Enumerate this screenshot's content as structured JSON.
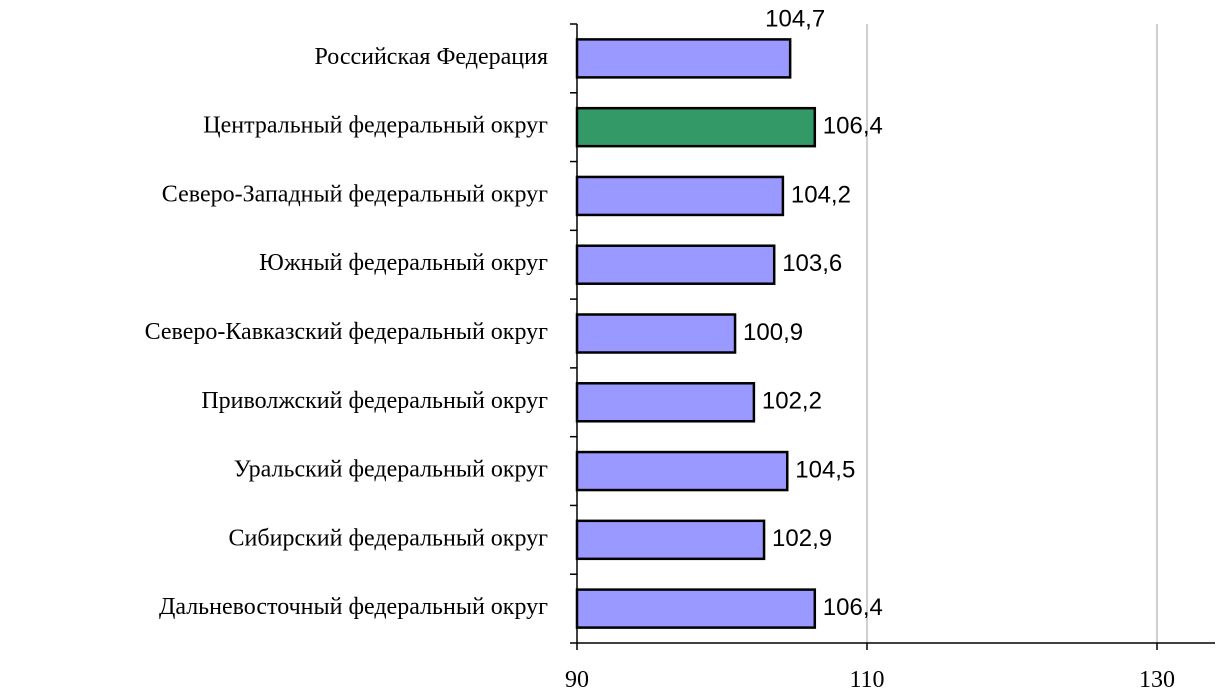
{
  "chart_data": {
    "type": "barh",
    "categories": [
      "Российская Федерация",
      "Центральный федеральный округ",
      "Северо-Западный федеральный округ",
      "Южный федеральный округ",
      "Северо-Кавказский федеральный округ",
      "Приволжский федеральный округ",
      "Уральский федеральный округ",
      "Сибирский федеральный округ",
      "Дальневосточный федеральный округ"
    ],
    "values": [
      104.7,
      106.4,
      104.2,
      103.6,
      100.9,
      102.2,
      104.5,
      102.9,
      106.4
    ],
    "value_labels": [
      "104,7",
      "106,4",
      "104,2",
      "103,6",
      "100,9",
      "102,2",
      "104,5",
      "102,9",
      "106,4"
    ],
    "colors": [
      "#9999ff",
      "#339966",
      "#9999ff",
      "#9999ff",
      "#9999ff",
      "#9999ff",
      "#9999ff",
      "#9999ff",
      "#9999ff"
    ],
    "xlim": [
      90,
      134
    ],
    "xticks": [
      90,
      110,
      130
    ],
    "grid": true
  }
}
